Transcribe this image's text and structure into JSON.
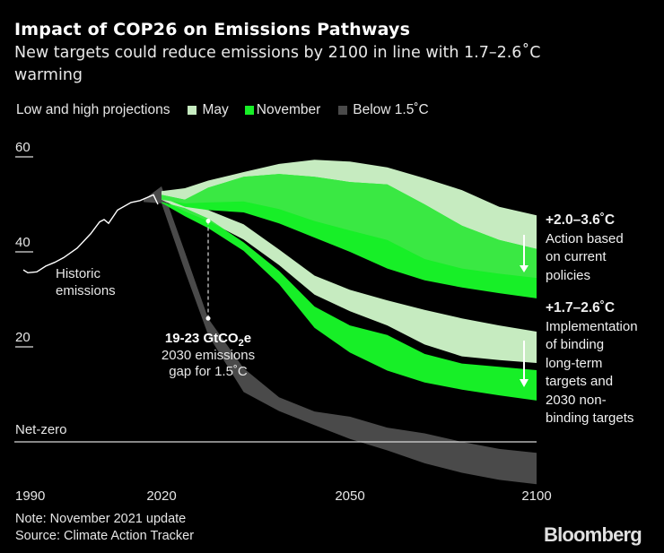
{
  "title": "Impact of COP26 on Emissions Pathways",
  "subtitle_lines": [
    "New targets could reduce emissions by 2100 in line with 1.7–2.6˚C",
    "warming"
  ],
  "legend": {
    "heading": "Low and high projections",
    "items": [
      {
        "label": "May",
        "color": "#c6ebc0"
      },
      {
        "label": "November",
        "color": "#17ef27"
      },
      {
        "label": "Below 1.5˚C",
        "color": "#4a4a4a"
      }
    ]
  },
  "annotations": {
    "historic": [
      "Historic",
      "emissions"
    ],
    "gap_title": "19-23 GtCO",
    "gap_sub": "2",
    "gap_suffix": "e",
    "gap_lines": [
      "2030 emissions",
      "gap for 1.5˚C"
    ],
    "net_zero": "Net-zero",
    "current_policies": {
      "range": "+2.0–3.6˚C",
      "lines": [
        "Action based",
        "on current",
        "policies"
      ]
    },
    "pledges": {
      "range": "+1.7–2.6˚C",
      "lines": [
        "Implementation",
        "of binding",
        "long-term",
        "targets and",
        "2030 non-",
        "binding targets"
      ]
    }
  },
  "notes": [
    "Note: November 2021 update",
    "Source: Climate Action Tracker"
  ],
  "logo": "Bloomberg",
  "chart_data": {
    "type": "area",
    "x_ticks": [
      "1990",
      "2020",
      "2050",
      "2100"
    ],
    "y_ticks": [
      "60",
      "40",
      "20"
    ],
    "ylim": [
      -10,
      60
    ],
    "xlim": [
      1990,
      2100
    ],
    "overlap_color": "#3ae843",
    "historic": {
      "color": "#ffffff",
      "years": [
        1990,
        1991,
        1993,
        1995,
        1997,
        1999,
        2002,
        2005,
        2007,
        2008,
        2009,
        2011,
        2014,
        2016,
        2019,
        2020
      ],
      "values": [
        36.2,
        35.6,
        35.8,
        37,
        37.8,
        38.8,
        40.8,
        43.8,
        46.3,
        46.8,
        46,
        48.8,
        50.4,
        50.8,
        52,
        50
      ]
    },
    "bands": [
      {
        "name": "Below 1.5˚C",
        "color": "#4a4a4a",
        "years": [
          2016,
          2020,
          2025,
          2030,
          2035,
          2040,
          2045,
          2050,
          2060,
          2070,
          2080,
          2090,
          2100
        ],
        "upper": [
          51,
          53.8,
          40,
          26,
          15.5,
          9.4,
          6.4,
          5.3,
          3,
          1.8,
          0,
          -1.5,
          -2.3
        ],
        "lower": [
          50.5,
          50.2,
          36,
          22.5,
          10.5,
          6.5,
          3.5,
          0.6,
          -1.8,
          -4.5,
          -6.5,
          -8,
          -8.9
        ]
      },
      {
        "name": "May",
        "scenario": "current policies",
        "color": "#c6ebc0",
        "years": [
          2020,
          2025,
          2030,
          2035,
          2040,
          2045,
          2050,
          2060,
          2070,
          2080,
          2090,
          2100
        ],
        "upper": [
          52.8,
          53.4,
          55,
          56.8,
          58.5,
          59.4,
          59,
          57.8,
          55.5,
          53,
          49.5,
          47.7
        ],
        "lower": [
          51,
          50.2,
          50.4,
          50.6,
          49,
          46.5,
          44.5,
          42.5,
          38.5,
          36.5,
          35.4,
          34.5
        ]
      },
      {
        "name": "November",
        "scenario": "current policies",
        "color": "#17ef27",
        "years": [
          2020,
          2025,
          2030,
          2035,
          2040,
          2045,
          2050,
          2060,
          2070,
          2080,
          2090,
          2100
        ],
        "upper": [
          52,
          51,
          53.5,
          55.8,
          56.4,
          55.8,
          54.7,
          54.2,
          50,
          45.5,
          42.5,
          40.6
        ],
        "lower": [
          51,
          49.2,
          48.8,
          48.3,
          46,
          43,
          40,
          36.5,
          34,
          32.5,
          31.3,
          30.2
        ]
      },
      {
        "name": "May",
        "scenario": "pledges and targets",
        "color": "#c6ebc0",
        "years": [
          2020,
          2025,
          2030,
          2035,
          2040,
          2045,
          2050,
          2060,
          2070,
          2080,
          2090,
          2100
        ],
        "upper": [
          51.5,
          49.5,
          48.8,
          45.8,
          40.5,
          35,
          32,
          29.8,
          27.8,
          26,
          24.5,
          23.2
        ],
        "lower": [
          51,
          48.5,
          46.5,
          42.6,
          37.2,
          31,
          27.5,
          24.5,
          20.5,
          18,
          17.2,
          16.6
        ]
      },
      {
        "name": "November",
        "scenario": "pledges and targets",
        "color": "#17ef27",
        "years": [
          2020,
          2025,
          2030,
          2035,
          2040,
          2045,
          2050,
          2060,
          2070,
          2080,
          2090,
          2100
        ],
        "upper": [
          50.5,
          49.2,
          47,
          42,
          36,
          28.5,
          24.5,
          22.5,
          18.5,
          16.5,
          15.8,
          15.1
        ],
        "lower": [
          50.3,
          47.5,
          45,
          40.2,
          33.2,
          24,
          18.8,
          15,
          12.5,
          11,
          9.8,
          8.7
        ]
      }
    ],
    "gap_marker": {
      "year": 2030,
      "from": 46.5,
      "to": 26
    },
    "net_zero_value": 0
  }
}
